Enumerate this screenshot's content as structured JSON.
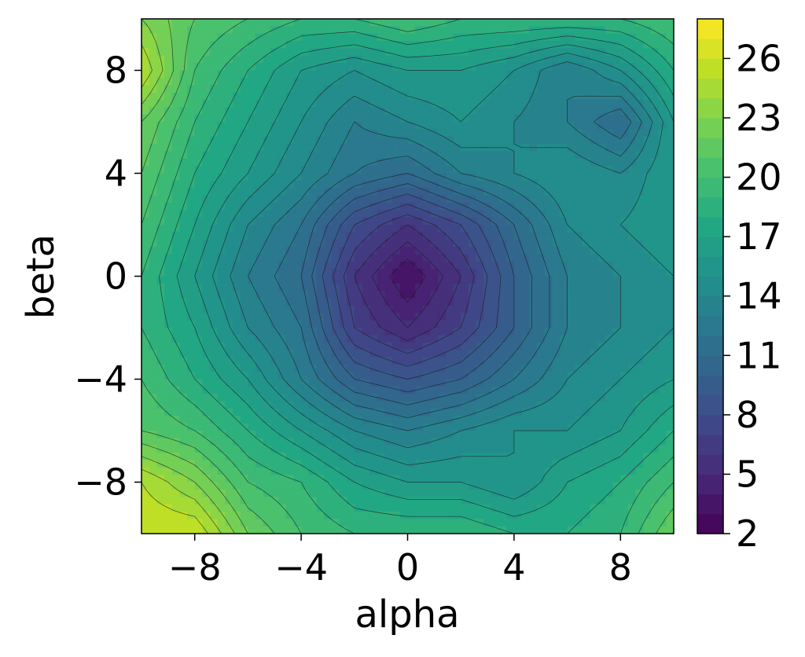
{
  "chart_data": {
    "type": "heatmap",
    "subtype": "filled-contour",
    "title": "",
    "xlabel": "alpha",
    "ylabel": "beta",
    "xlim": [
      -10,
      10
    ],
    "ylim": [
      -10,
      10
    ],
    "xticks": [
      -8,
      -4,
      0,
      4,
      8
    ],
    "yticks": [
      -8,
      -4,
      0,
      4,
      8
    ],
    "xtick_labels": [
      "−8",
      "−4",
      "0",
      "4",
      "8"
    ],
    "ytick_labels": [
      "−8",
      "−4",
      "0",
      "4",
      "8"
    ],
    "colorbar": {
      "min": 2,
      "max": 28,
      "ticks": [
        2,
        5,
        8,
        11,
        14,
        17,
        20,
        23,
        26
      ],
      "tick_labels": [
        "2",
        "5",
        "8",
        "11",
        "14",
        "17",
        "20",
        "23",
        "26"
      ],
      "colormap": "viridis",
      "placement": "right"
    },
    "grid": false,
    "x": [
      -10,
      -8,
      -6,
      -4,
      -2,
      0,
      2,
      4,
      6,
      8,
      10
    ],
    "y": [
      10,
      8,
      6,
      4,
      2,
      0,
      -2,
      -4,
      -6,
      -8,
      -10
    ],
    "z": [
      [
        23,
        21,
        20,
        19,
        19,
        20,
        19,
        19,
        19,
        19,
        20
      ],
      [
        25,
        20,
        18,
        16,
        15,
        16,
        16,
        15,
        13,
        15,
        18
      ],
      [
        22,
        19,
        17,
        15,
        13,
        14,
        15,
        14,
        13,
        11,
        16
      ],
      [
        21,
        18,
        16,
        14,
        12,
        11,
        13,
        14,
        15,
        14,
        16
      ],
      [
        20,
        17,
        14,
        12,
        8,
        6,
        8,
        11,
        14,
        15,
        16
      ],
      [
        19,
        16,
        13,
        11,
        6,
        3,
        6,
        10,
        13,
        14,
        15
      ],
      [
        19,
        17,
        14,
        12,
        7,
        5,
        7,
        10,
        13,
        14,
        15
      ],
      [
        20,
        18,
        16,
        13,
        10,
        9,
        10,
        12,
        14,
        15,
        16
      ],
      [
        21,
        20,
        18,
        16,
        14,
        13,
        14,
        15,
        15,
        16,
        18
      ],
      [
        25,
        23,
        20,
        19,
        17,
        16,
        16,
        15,
        17,
        18,
        20
      ],
      [
        26,
        26,
        22,
        20,
        19,
        19,
        19,
        18,
        18,
        19,
        22
      ]
    ],
    "levels_step": 1
  }
}
